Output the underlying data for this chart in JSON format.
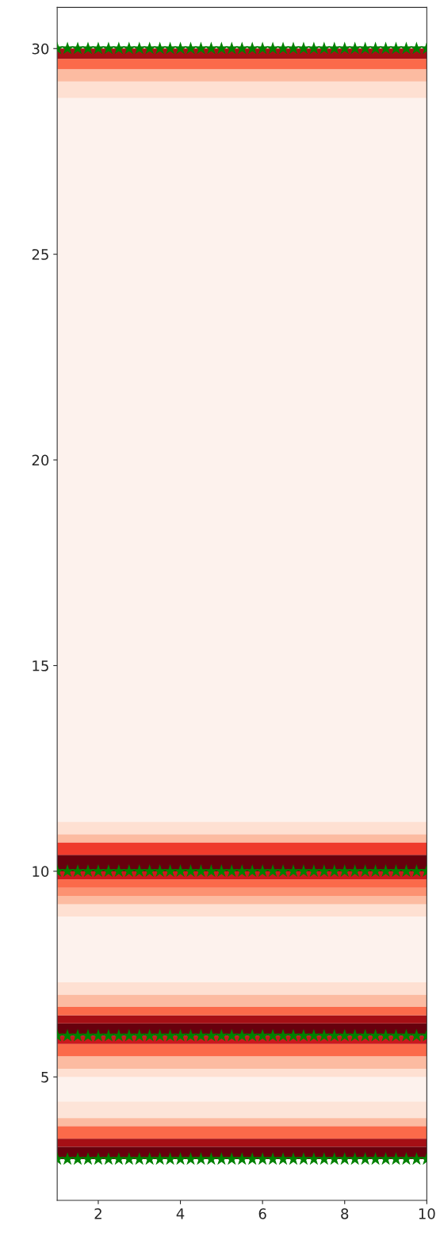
{
  "chart_data": {
    "type": "scatter",
    "marker": "star",
    "series": [
      {
        "color": "#008000",
        "x": [
          1,
          1.25,
          1.5,
          1.75,
          2,
          2.25,
          2.5,
          2.75,
          3,
          3.25,
          3.5,
          3.75,
          4,
          4.25,
          4.5,
          4.75,
          5,
          5.25,
          5.5,
          5.75,
          6,
          6.25,
          6.5,
          6.75,
          7,
          7.25,
          7.5,
          7.75,
          8,
          8.25,
          8.5,
          8.75,
          9,
          9.25,
          9.5,
          9.75,
          10
        ],
        "values": [
          3,
          3,
          3,
          3,
          3,
          3,
          3,
          3,
          3,
          3,
          3,
          3,
          3,
          3,
          3,
          3,
          3,
          3,
          3,
          3,
          3,
          3,
          3,
          3,
          3,
          3,
          3,
          3,
          3,
          3,
          3,
          3,
          3,
          3,
          3,
          3,
          3
        ]
      },
      {
        "color": "#008000",
        "x": [
          1,
          1.25,
          1.5,
          1.75,
          2,
          2.25,
          2.5,
          2.75,
          3,
          3.25,
          3.5,
          3.75,
          4,
          4.25,
          4.5,
          4.75,
          5,
          5.25,
          5.5,
          5.75,
          6,
          6.25,
          6.5,
          6.75,
          7,
          7.25,
          7.5,
          7.75,
          8,
          8.25,
          8.5,
          8.75,
          9,
          9.25,
          9.5,
          9.75,
          10
        ],
        "values": [
          6,
          6,
          6,
          6,
          6,
          6,
          6,
          6,
          6,
          6,
          6,
          6,
          6,
          6,
          6,
          6,
          6,
          6,
          6,
          6,
          6,
          6,
          6,
          6,
          6,
          6,
          6,
          6,
          6,
          6,
          6,
          6,
          6,
          6,
          6,
          6,
          6
        ]
      },
      {
        "color": "#008000",
        "x": [
          1,
          1.25,
          1.5,
          1.75,
          2,
          2.25,
          2.5,
          2.75,
          3,
          3.25,
          3.5,
          3.75,
          4,
          4.25,
          4.5,
          4.75,
          5,
          5.25,
          5.5,
          5.75,
          6,
          6.25,
          6.5,
          6.75,
          7,
          7.25,
          7.5,
          7.75,
          8,
          8.25,
          8.5,
          8.75,
          9,
          9.25,
          9.5,
          9.75,
          10
        ],
        "values": [
          10,
          10,
          10,
          10,
          10,
          10,
          10,
          10,
          10,
          10,
          10,
          10,
          10,
          10,
          10,
          10,
          10,
          10,
          10,
          10,
          10,
          10,
          10,
          10,
          10,
          10,
          10,
          10,
          10,
          10,
          10,
          10,
          10,
          10,
          10,
          10,
          10
        ]
      },
      {
        "color": "#008000",
        "x": [
          1,
          1.25,
          1.5,
          1.75,
          2,
          2.25,
          2.5,
          2.75,
          3,
          3.25,
          3.5,
          3.75,
          4,
          4.25,
          4.5,
          4.75,
          5,
          5.25,
          5.5,
          5.75,
          6,
          6.25,
          6.5,
          6.75,
          7,
          7.25,
          7.5,
          7.75,
          8,
          8.25,
          8.5,
          8.75,
          9,
          9.25,
          9.5,
          9.75,
          10
        ],
        "values": [
          30,
          30,
          30,
          30,
          30,
          30,
          30,
          30,
          30,
          30,
          30,
          30,
          30,
          30,
          30,
          30,
          30,
          30,
          30,
          30,
          30,
          30,
          30,
          30,
          30,
          30,
          30,
          30,
          30,
          30,
          30,
          30,
          30,
          30,
          30,
          30,
          30
        ]
      }
    ],
    "xlim": [
      1,
      10
    ],
    "xticks": [
      2,
      4,
      6,
      8,
      10
    ],
    "ylim": [
      2,
      31
    ],
    "yticks": [
      5,
      10,
      15,
      20,
      25,
      30
    ],
    "bands": [
      {
        "axis": "y",
        "from": 3,
        "to": 30,
        "color": "#fdf2ed"
      },
      {
        "axis": "y",
        "from": 4.0,
        "to": 4.4,
        "color": "#fde4d8"
      },
      {
        "axis": "y",
        "from": 3.8,
        "to": 4.0,
        "color": "#fcbba1"
      },
      {
        "axis": "y",
        "from": 3.5,
        "to": 3.8,
        "color": "#fb6a4a"
      },
      {
        "axis": "y",
        "from": 3.3,
        "to": 3.5,
        "color": "#a50f15"
      },
      {
        "axis": "y",
        "from": 3.0,
        "to": 3.3,
        "color": "#67000d"
      },
      {
        "axis": "y",
        "from": 5.0,
        "to": 5.2,
        "color": "#fee0d2"
      },
      {
        "axis": "y",
        "from": 5.2,
        "to": 5.5,
        "color": "#fcbba1"
      },
      {
        "axis": "y",
        "from": 5.5,
        "to": 5.8,
        "color": "#fb6a4a"
      },
      {
        "axis": "y",
        "from": 5.8,
        "to": 6.0,
        "color": "#cb181d"
      },
      {
        "axis": "y",
        "from": 6.0,
        "to": 6.3,
        "color": "#67000d"
      },
      {
        "axis": "y",
        "from": 6.3,
        "to": 6.5,
        "color": "#a50f15"
      },
      {
        "axis": "y",
        "from": 6.5,
        "to": 6.7,
        "color": "#fb6a4a"
      },
      {
        "axis": "y",
        "from": 6.7,
        "to": 7.0,
        "color": "#fcbba1"
      },
      {
        "axis": "y",
        "from": 7.0,
        "to": 7.3,
        "color": "#fee0d2"
      },
      {
        "axis": "y",
        "from": 8.9,
        "to": 9.2,
        "color": "#fee0d2"
      },
      {
        "axis": "y",
        "from": 9.2,
        "to": 9.4,
        "color": "#fcbba1"
      },
      {
        "axis": "y",
        "from": 9.4,
        "to": 9.6,
        "color": "#fc9272"
      },
      {
        "axis": "y",
        "from": 9.6,
        "to": 9.8,
        "color": "#fb6a4a"
      },
      {
        "axis": "y",
        "from": 9.8,
        "to": 10.0,
        "color": "#cb181d"
      },
      {
        "axis": "y",
        "from": 10.0,
        "to": 10.4,
        "color": "#67000d"
      },
      {
        "axis": "y",
        "from": 10.4,
        "to": 10.7,
        "color": "#ef3b2c"
      },
      {
        "axis": "y",
        "from": 10.7,
        "to": 10.9,
        "color": "#fcbba1"
      },
      {
        "axis": "y",
        "from": 10.9,
        "to": 11.2,
        "color": "#fee0d2"
      },
      {
        "axis": "y",
        "from": 28.8,
        "to": 29.2,
        "color": "#fee0d2"
      },
      {
        "axis": "y",
        "from": 29.2,
        "to": 29.5,
        "color": "#fcbba1"
      },
      {
        "axis": "y",
        "from": 29.5,
        "to": 29.75,
        "color": "#fb6a4a"
      },
      {
        "axis": "y",
        "from": 29.75,
        "to": 30,
        "color": "#a50f15"
      }
    ]
  }
}
